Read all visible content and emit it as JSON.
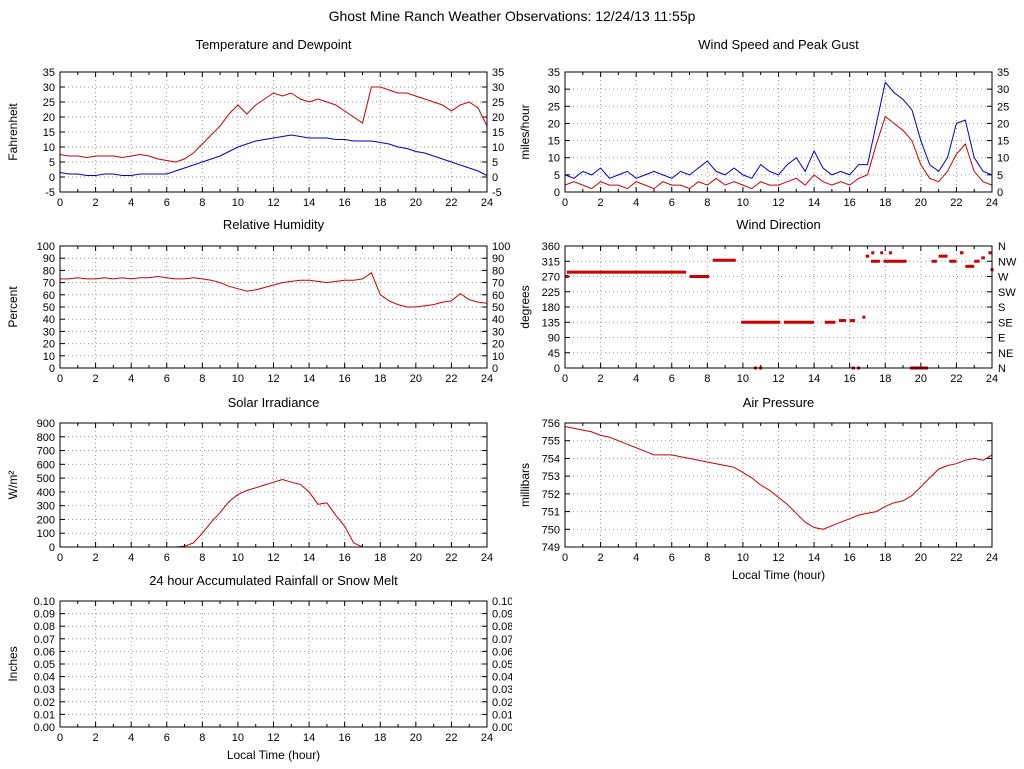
{
  "page": {
    "title": "Ghost Mine Ranch Weather Observations: 12/24/13 11:55p"
  },
  "colors": {
    "series_red": "#cc0000",
    "series_blue": "#0000cc",
    "grid": "#999999",
    "axis": "#000000"
  },
  "chart_data": [
    {
      "type": "line",
      "title": "Temperature and Dewpoint",
      "ylabel": "Fahrenheit",
      "xlabel": "",
      "xlim": [
        0,
        24
      ],
      "xticks": [
        0,
        2,
        4,
        6,
        8,
        10,
        12,
        14,
        16,
        18,
        20,
        22,
        24
      ],
      "ylim": [
        -5,
        35
      ],
      "yticks": [
        -5,
        0,
        5,
        10,
        15,
        20,
        25,
        30,
        35
      ],
      "right_axis": "mirror",
      "grid": true,
      "series": [
        {
          "name": "Temperature",
          "color": "#cc0000",
          "type": "line",
          "x_start": 0,
          "x_step": 0.5,
          "y": [
            7.5,
            7,
            7,
            6.5,
            7,
            7,
            7,
            6.5,
            7,
            7.5,
            7,
            6,
            5.5,
            5,
            6,
            8,
            11,
            14,
            17,
            21,
            24,
            21,
            24,
            26,
            28,
            27,
            28,
            26,
            25,
            26,
            25,
            24,
            22,
            20,
            18,
            30,
            30,
            29,
            28,
            28,
            27,
            26,
            25,
            24,
            22,
            24,
            25,
            23,
            17
          ]
        },
        {
          "name": "Dewpoint",
          "color": "#0000cc",
          "type": "line",
          "x_start": 0,
          "x_step": 0.5,
          "y": [
            1.5,
            1,
            1,
            0.5,
            0.5,
            1,
            1,
            0.5,
            0.5,
            1,
            1,
            1,
            1,
            2,
            3,
            4,
            5,
            6,
            7,
            8.5,
            10,
            11,
            12,
            12.5,
            13,
            13.5,
            14,
            13.5,
            13,
            13,
            13,
            12.5,
            12.5,
            12,
            12,
            12,
            11.5,
            11,
            10,
            9.5,
            8.5,
            8,
            7,
            6,
            5,
            4,
            3,
            2,
            0.5
          ]
        }
      ]
    },
    {
      "type": "line",
      "title": "Wind Speed and Peak Gust",
      "ylabel": "miles/hour",
      "xlabel": "",
      "xlim": [
        0,
        24
      ],
      "xticks": [
        0,
        2,
        4,
        6,
        8,
        10,
        12,
        14,
        16,
        18,
        20,
        22,
        24
      ],
      "ylim": [
        0,
        35
      ],
      "yticks": [
        0,
        5,
        10,
        15,
        20,
        25,
        30,
        35
      ],
      "right_axis": "mirror",
      "grid": true,
      "series": [
        {
          "name": "Peak Gust",
          "color": "#0000cc",
          "type": "line",
          "x_start": 0,
          "x_step": 0.5,
          "y": [
            5,
            4,
            6,
            5,
            7,
            4,
            5,
            6,
            4,
            5,
            6,
            5,
            4,
            6,
            5,
            7,
            9,
            6,
            5,
            7,
            5,
            4,
            8,
            6,
            5,
            8,
            10,
            6,
            12,
            7,
            5,
            6,
            5,
            8,
            8,
            20,
            32,
            29,
            27,
            24,
            15,
            8,
            6,
            10,
            20,
            21,
            10,
            6,
            5
          ]
        },
        {
          "name": "Wind Speed",
          "color": "#cc0000",
          "type": "line",
          "x_start": 0,
          "x_step": 0.5,
          "y": [
            2,
            3,
            2,
            1,
            3,
            2,
            2,
            1,
            3,
            2,
            1,
            3,
            2,
            2,
            1,
            3,
            2,
            4,
            2,
            3,
            2,
            1,
            3,
            2,
            2,
            3,
            4,
            2,
            5,
            3,
            2,
            3,
            2,
            4,
            5,
            14,
            22,
            20,
            18,
            15,
            8,
            4,
            3,
            6,
            11,
            14,
            6,
            3,
            2
          ]
        }
      ]
    },
    {
      "type": "line",
      "title": "Relative Humidity",
      "ylabel": "Percent",
      "xlabel": "",
      "xlim": [
        0,
        24
      ],
      "xticks": [
        0,
        2,
        4,
        6,
        8,
        10,
        12,
        14,
        16,
        18,
        20,
        22,
        24
      ],
      "ylim": [
        0,
        100
      ],
      "yticks": [
        0,
        10,
        20,
        30,
        40,
        50,
        60,
        70,
        80,
        90,
        100
      ],
      "right_axis": "mirror",
      "grid": true,
      "series": [
        {
          "name": "Relative Humidity",
          "color": "#cc0000",
          "type": "line",
          "x_start": 0,
          "x_step": 0.5,
          "y": [
            73,
            73,
            74,
            73,
            73,
            74,
            73,
            74,
            73,
            74,
            74,
            75,
            74,
            73,
            73,
            74,
            73,
            72,
            70,
            67,
            65,
            63,
            64,
            66,
            68,
            70,
            71,
            72,
            72,
            71,
            70,
            71,
            72,
            72,
            73,
            78,
            60,
            55,
            52,
            50,
            50,
            51,
            52,
            54,
            55,
            61,
            56,
            54,
            53
          ]
        }
      ]
    },
    {
      "type": "scatter",
      "title": "Wind Direction",
      "ylabel": "degrees",
      "xlabel": "",
      "xlim": [
        0,
        24
      ],
      "xticks": [
        0,
        2,
        4,
        6,
        8,
        10,
        12,
        14,
        16,
        18,
        20,
        22,
        24
      ],
      "ylim": [
        0,
        360
      ],
      "yticks": [
        0,
        45,
        90,
        135,
        180,
        225,
        270,
        315,
        360
      ],
      "right_axis": "compass",
      "yticks_right": {
        "values": [
          0,
          45,
          90,
          135,
          180,
          225,
          270,
          315,
          360
        ],
        "labels": [
          "N",
          "NE",
          "E",
          "SE",
          "S",
          "SW",
          "W",
          "NW",
          "N"
        ]
      },
      "grid": true,
      "series": [
        {
          "name": "Wind Direction",
          "color": "#cc0000",
          "type": "segments",
          "segments": [
            [
              0.0,
              0.2,
              270
            ],
            [
              0.1,
              6.8,
              283
            ],
            [
              7.0,
              8.1,
              270
            ],
            [
              8.3,
              9.6,
              318
            ],
            [
              9.9,
              12.1,
              135
            ],
            [
              12.3,
              14.0,
              135
            ],
            [
              14.6,
              15.2,
              135
            ],
            [
              15.4,
              15.8,
              140
            ],
            [
              16.0,
              16.3,
              140
            ],
            [
              16.9,
              17.1,
              330
            ],
            [
              17.2,
              17.7,
              315
            ],
            [
              17.9,
              19.2,
              315
            ],
            [
              19.4,
              20.4,
              0
            ],
            [
              20.6,
              20.9,
              315
            ],
            [
              21.0,
              21.5,
              330
            ],
            [
              21.6,
              22.0,
              315
            ],
            [
              22.2,
              22.4,
              340
            ],
            [
              22.5,
              23.0,
              300
            ],
            [
              23.0,
              23.3,
              315
            ],
            [
              23.4,
              23.6,
              325
            ],
            [
              23.8,
              24.0,
              340
            ]
          ],
          "points": [
            [
              10.7,
              0
            ],
            [
              11.0,
              0
            ],
            [
              16.2,
              0
            ],
            [
              16.5,
              0
            ],
            [
              16.8,
              150
            ],
            [
              17.3,
              340
            ],
            [
              17.8,
              340
            ],
            [
              18.3,
              340
            ],
            [
              24.0,
              290
            ]
          ]
        }
      ]
    },
    {
      "type": "line",
      "title": "Solar Irradiance",
      "ylabel": "W/m²",
      "xlabel": "",
      "xlim": [
        0,
        24
      ],
      "xticks": [
        0,
        2,
        4,
        6,
        8,
        10,
        12,
        14,
        16,
        18,
        20,
        22,
        24
      ],
      "ylim": [
        0,
        900
      ],
      "yticks": [
        0,
        100,
        200,
        300,
        400,
        500,
        600,
        700,
        800,
        900
      ],
      "right_axis": "none",
      "grid": true,
      "series": [
        {
          "name": "Solar Irradiance",
          "color": "#cc0000",
          "type": "line",
          "x_start": 0,
          "x_step": 0.5,
          "y": [
            0,
            0,
            0,
            0,
            0,
            0,
            0,
            0,
            0,
            0,
            0,
            0,
            0,
            0,
            5,
            30,
            100,
            180,
            250,
            330,
            380,
            410,
            430,
            450,
            470,
            490,
            470,
            455,
            400,
            310,
            320,
            230,
            150,
            30,
            0,
            0,
            0,
            0,
            0,
            0,
            0,
            0,
            0,
            0,
            0,
            0,
            0,
            0,
            0
          ]
        }
      ]
    },
    {
      "type": "line",
      "title": "Air Pressure",
      "ylabel": "millibars",
      "xlabel": "Local Time (hour)",
      "xlim": [
        0,
        24
      ],
      "xticks": [
        0,
        2,
        4,
        6,
        8,
        10,
        12,
        14,
        16,
        18,
        20,
        22,
        24
      ],
      "ylim": [
        749,
        756
      ],
      "yticks": [
        749,
        750,
        751,
        752,
        753,
        754,
        755,
        756
      ],
      "right_axis": "none",
      "grid": true,
      "series": [
        {
          "name": "Air Pressure",
          "color": "#cc0000",
          "type": "line",
          "x_start": 0,
          "x_step": 0.5,
          "y": [
            755.8,
            755.7,
            755.6,
            755.5,
            755.3,
            755.2,
            755.0,
            754.8,
            754.6,
            754.4,
            754.2,
            754.2,
            754.2,
            754.1,
            754.0,
            753.9,
            753.8,
            753.7,
            753.6,
            753.5,
            753.2,
            752.9,
            752.5,
            752.2,
            751.8,
            751.4,
            750.9,
            750.4,
            750.1,
            750.0,
            750.2,
            750.4,
            750.6,
            750.8,
            750.9,
            751.0,
            751.3,
            751.5,
            751.6,
            751.9,
            752.4,
            752.9,
            753.4,
            753.6,
            753.7,
            753.9,
            754.0,
            753.9,
            754.2
          ]
        }
      ]
    },
    {
      "type": "line",
      "title": "24 hour Accumulated Rainfall or Snow Melt",
      "ylabel": "Inches",
      "xlabel": "Local Time (hour)",
      "xlim": [
        0,
        24
      ],
      "xticks": [
        0,
        2,
        4,
        6,
        8,
        10,
        12,
        14,
        16,
        18,
        20,
        22,
        24
      ],
      "ylim": [
        0,
        0.1
      ],
      "yticks": [
        0,
        0.01,
        0.02,
        0.03,
        0.04,
        0.05,
        0.06,
        0.07,
        0.08,
        0.09,
        0.1
      ],
      "ytick_labels": [
        "0.00",
        "0.01",
        "0.02",
        "0.03",
        "0.04",
        "0.05",
        "0.06",
        "0.07",
        "0.08",
        "0.09",
        "0.10"
      ],
      "right_axis": "mirror",
      "grid": true,
      "series": [
        {
          "name": "Accumulated Rainfall",
          "color": "#cc0000",
          "type": "line",
          "x_start": 0,
          "x_step": 24,
          "y": [
            0,
            0
          ]
        }
      ]
    }
  ]
}
